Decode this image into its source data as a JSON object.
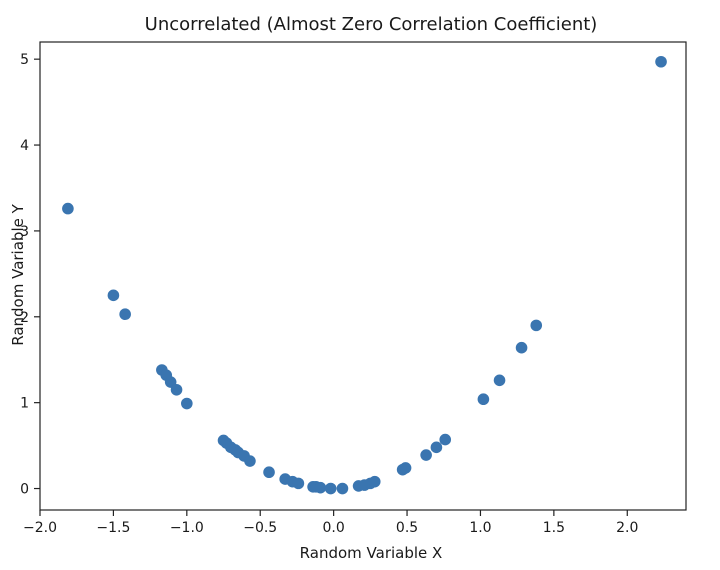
{
  "chart_data": {
    "type": "scatter",
    "title": "Uncorrelated (Almost Zero Correlation Coefficient)",
    "xlabel": "Random Variable X",
    "ylabel": "Random Variable Y",
    "xlim": [
      -2.0,
      2.4
    ],
    "ylim": [
      -0.25,
      5.2
    ],
    "x_ticks": [
      -2.0,
      -1.5,
      -1.0,
      -0.5,
      0.0,
      0.5,
      1.0,
      1.5,
      2.0
    ],
    "x_tick_labels": [
      "−2.0",
      "−1.5",
      "−1.0",
      "−0.5",
      "0.0",
      "0.5",
      "1.0",
      "1.5",
      "2.0"
    ],
    "y_ticks": [
      0,
      1,
      2,
      3,
      4,
      5
    ],
    "y_tick_labels": [
      "0",
      "1",
      "2",
      "3",
      "4",
      "5"
    ],
    "grid": false,
    "legend": "none",
    "marker_color": "#3a75b0",
    "series": [
      {
        "x": [
          -1.81,
          -1.5,
          -1.42,
          -1.17,
          -1.14,
          -1.11,
          -1.07,
          -1.0,
          -0.75,
          -0.73,
          -0.7,
          -0.67,
          -0.65,
          -0.61,
          -0.57,
          -0.44,
          -0.33,
          -0.28,
          -0.24,
          -0.14,
          -0.12,
          -0.09,
          -0.02,
          0.06,
          0.17,
          0.21,
          0.25,
          0.28,
          0.47,
          0.49,
          0.63,
          0.7,
          0.76,
          1.02,
          1.13,
          1.28,
          1.38,
          2.23
        ],
        "y": [
          3.26,
          2.25,
          2.03,
          1.38,
          1.32,
          1.24,
          1.15,
          0.99,
          0.56,
          0.53,
          0.48,
          0.45,
          0.42,
          0.38,
          0.32,
          0.19,
          0.11,
          0.08,
          0.06,
          0.02,
          0.02,
          0.01,
          0.0,
          0.0,
          0.03,
          0.04,
          0.06,
          0.08,
          0.22,
          0.24,
          0.39,
          0.48,
          0.57,
          1.04,
          1.26,
          1.64,
          1.9,
          4.97
        ]
      }
    ]
  }
}
